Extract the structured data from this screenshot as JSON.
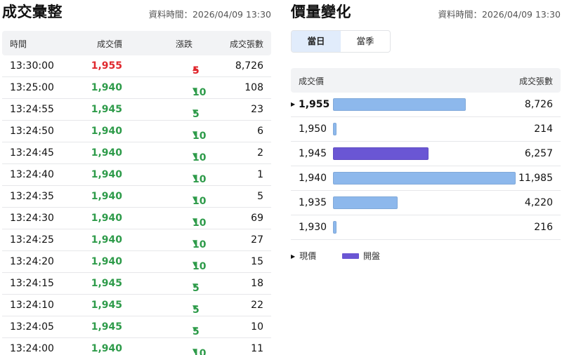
{
  "left": {
    "title": "成交彙整",
    "timestamp": "資料時間：2026/04/09 13:30",
    "columns": [
      "時間",
      "成交價",
      "漲跌",
      "成交張數"
    ],
    "rows": [
      {
        "time": "13:30:00",
        "price": "1,955",
        "change": "5",
        "dir": "up",
        "volume": "8,726"
      },
      {
        "time": "13:25:00",
        "price": "1,940",
        "change": "10",
        "dir": "down",
        "volume": "108"
      },
      {
        "time": "13:24:55",
        "price": "1,945",
        "change": "5",
        "dir": "down",
        "volume": "23"
      },
      {
        "time": "13:24:50",
        "price": "1,940",
        "change": "10",
        "dir": "down",
        "volume": "6"
      },
      {
        "time": "13:24:45",
        "price": "1,940",
        "change": "10",
        "dir": "down",
        "volume": "2"
      },
      {
        "time": "13:24:40",
        "price": "1,940",
        "change": "10",
        "dir": "down",
        "volume": "1"
      },
      {
        "time": "13:24:35",
        "price": "1,940",
        "change": "10",
        "dir": "down",
        "volume": "5"
      },
      {
        "time": "13:24:30",
        "price": "1,940",
        "change": "10",
        "dir": "down",
        "volume": "69"
      },
      {
        "time": "13:24:25",
        "price": "1,940",
        "change": "10",
        "dir": "down",
        "volume": "27"
      },
      {
        "time": "13:24:20",
        "price": "1,940",
        "change": "10",
        "dir": "down",
        "volume": "15"
      },
      {
        "time": "13:24:15",
        "price": "1,945",
        "change": "5",
        "dir": "down",
        "volume": "18"
      },
      {
        "time": "13:24:10",
        "price": "1,945",
        "change": "5",
        "dir": "down",
        "volume": "22"
      },
      {
        "time": "13:24:05",
        "price": "1,945",
        "change": "5",
        "dir": "down",
        "volume": "10"
      },
      {
        "time": "13:24:00",
        "price": "1,940",
        "change": "10",
        "dir": "down",
        "volume": "11"
      }
    ]
  },
  "right": {
    "title": "價量變化",
    "timestamp": "資料時間：2026/04/09 13:30",
    "tabs": [
      {
        "label": "當日",
        "active": true
      },
      {
        "label": "當季",
        "active": false
      }
    ],
    "columns": [
      "成交價",
      "成交張數"
    ],
    "rows": [
      {
        "price": "1,955",
        "volume": "8,726",
        "vol_num": 8726,
        "current": true,
        "open": false
      },
      {
        "price": "1,950",
        "volume": "214",
        "vol_num": 214,
        "current": false,
        "open": false
      },
      {
        "price": "1,945",
        "volume": "6,257",
        "vol_num": 6257,
        "current": false,
        "open": true
      },
      {
        "price": "1,940",
        "volume": "11,985",
        "vol_num": 11985,
        "current": false,
        "open": false
      },
      {
        "price": "1,935",
        "volume": "4,220",
        "vol_num": 4220,
        "current": false,
        "open": false
      },
      {
        "price": "1,930",
        "volume": "216",
        "vol_num": 216,
        "current": false,
        "open": false
      }
    ],
    "legend": {
      "current_label": "現價",
      "open_label": "開盤"
    },
    "colors": {
      "bar": "#8db8ec",
      "open_bar": "#6a56d4",
      "up": "#e0282e",
      "down": "#2e9b4a",
      "tab_active_bg": "#e1ecfb"
    }
  },
  "chart_data": {
    "type": "bar",
    "orientation": "horizontal",
    "title": "價量變化",
    "categories": [
      "1,955",
      "1,950",
      "1,945",
      "1,940",
      "1,935",
      "1,930"
    ],
    "values": [
      8726,
      214,
      6257,
      11985,
      4220,
      216
    ],
    "xlabel": "成交張數",
    "ylabel": "成交價",
    "highlight": {
      "current_price": "1,955",
      "open_price": "1,945"
    },
    "legend": [
      "現價",
      "開盤"
    ]
  }
}
